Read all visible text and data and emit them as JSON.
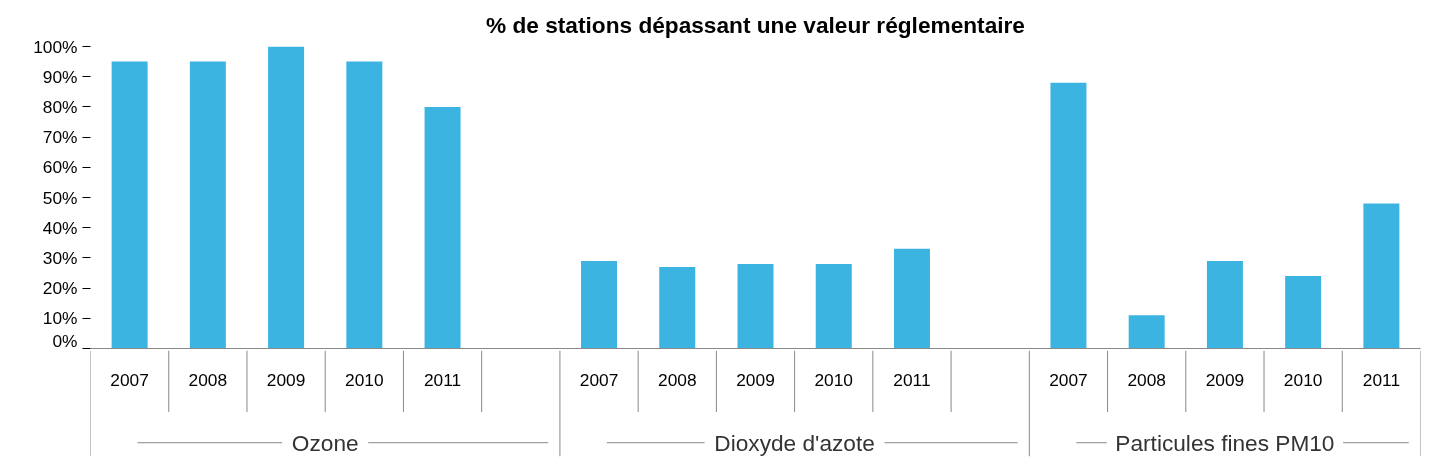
{
  "chart_data": {
    "type": "bar",
    "title": "% de stations dépassant une valeur réglementaire",
    "categories": [
      "2007",
      "2008",
      "2009",
      "2010",
      "2011",
      null,
      "2007",
      "2008",
      "2009",
      "2010",
      "2011",
      null,
      "2007",
      "2008",
      "2009",
      "2010",
      "2011"
    ],
    "values": [
      95,
      95,
      100,
      95,
      80,
      null,
      29,
      27,
      28,
      28,
      33,
      null,
      88,
      11,
      29,
      24,
      48
    ],
    "color": "#3bb4e1",
    "ylim": [
      0,
      100
    ],
    "yticks": [
      {
        "value": 0,
        "label": "0%"
      },
      {
        "value": 10,
        "label": "10%"
      },
      {
        "value": 20,
        "label": "20%"
      },
      {
        "value": 30,
        "label": "30%"
      },
      {
        "value": 40,
        "label": "40%"
      },
      {
        "value": 50,
        "label": "50%"
      },
      {
        "value": 60,
        "label": "60%"
      },
      {
        "value": 70,
        "label": "70%"
      },
      {
        "value": 80,
        "label": "80%"
      },
      {
        "value": 90,
        "label": "90%"
      },
      {
        "value": 100,
        "label": "100%"
      }
    ],
    "annotations": [
      "Ozone",
      "Dioxyde d'azote",
      "Particules fines PM10"
    ],
    "grid": false
  }
}
